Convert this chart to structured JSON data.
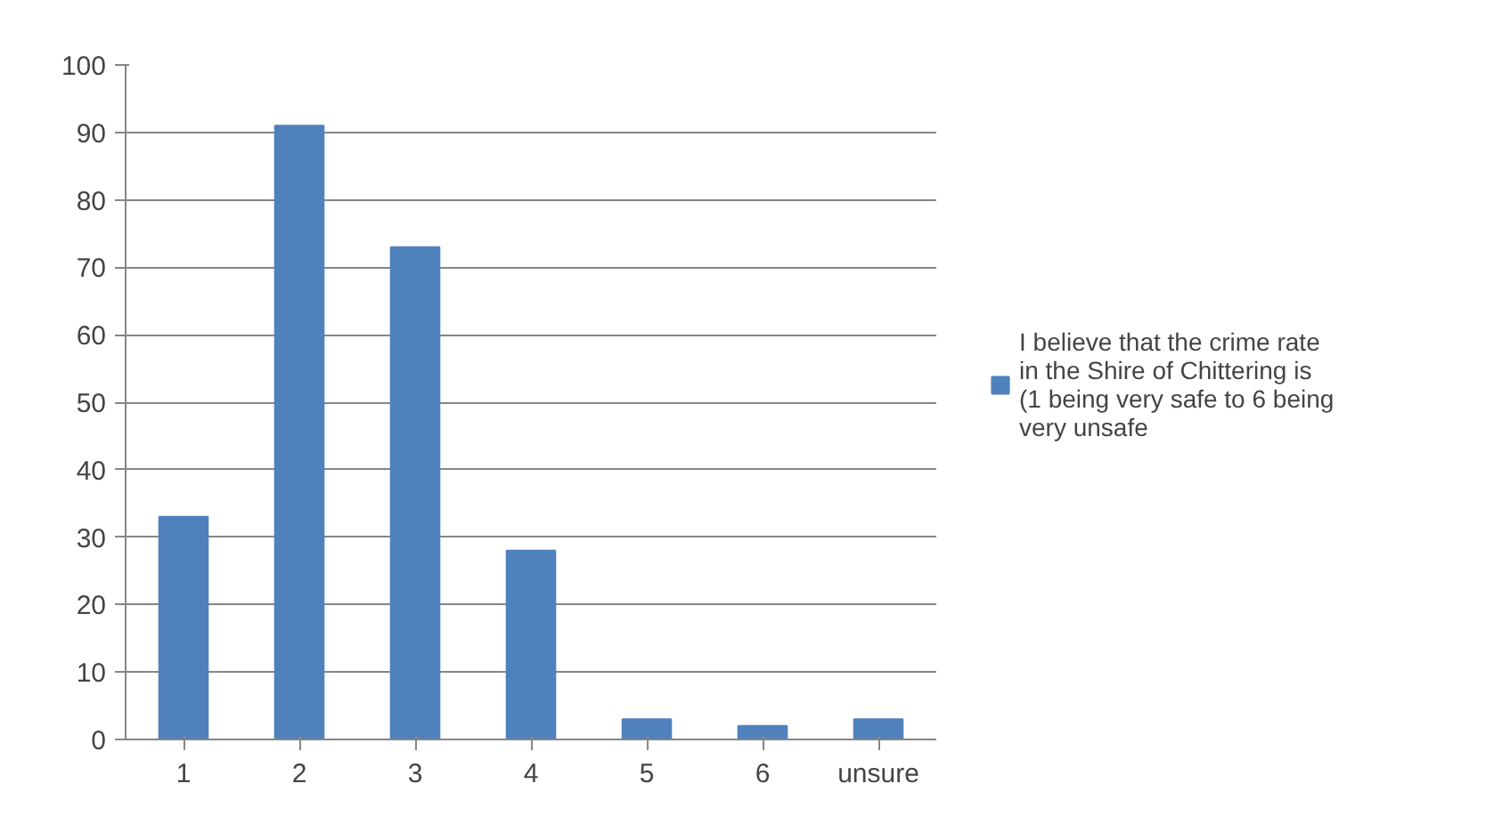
{
  "chart_data": {
    "type": "bar",
    "categories": [
      "1",
      "2",
      "3",
      "4",
      "5",
      "6",
      "unsure"
    ],
    "series": [
      {
        "name": "I believe that the crime rate in the Shire of Chittering is (1 being very safe to 6 being very unsafe",
        "color": "#4f81bd",
        "values": [
          33,
          91,
          73,
          28,
          3,
          2,
          3
        ]
      }
    ],
    "ylim": [
      0,
      100
    ],
    "yticks": [
      0,
      10,
      20,
      30,
      40,
      50,
      60,
      70,
      80,
      90,
      100
    ],
    "grid": "y",
    "legend": "right"
  }
}
